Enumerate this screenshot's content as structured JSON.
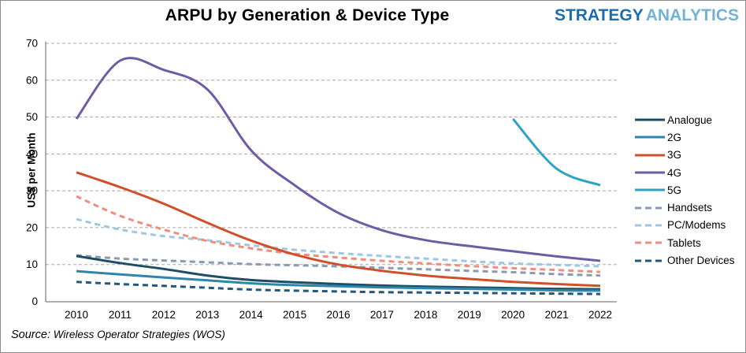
{
  "title": "ARPU by Generation & Device Type",
  "logo": {
    "part1": "STRATEGY",
    "part2": "ANALYTICS"
  },
  "source": {
    "prefix": "Source:",
    "text": "Wireless Operator Strategies (WOS)"
  },
  "chart_data": {
    "type": "line",
    "title": "ARPU by Generation & Device Type",
    "xlabel": "",
    "ylabel": "US$ per Month",
    "ylim": [
      0,
      70
    ],
    "yticks": [
      0,
      10,
      20,
      30,
      40,
      50,
      60,
      70
    ],
    "x": [
      2010,
      2011,
      2012,
      2013,
      2014,
      2015,
      2016,
      2017,
      2018,
      2019,
      2020,
      2021,
      2022
    ],
    "grid": "horizontal dashed gridlines",
    "legend_position": "right",
    "axis_color": "#808080",
    "gridline_color": "#a8a8a8",
    "series": [
      {
        "name": "Analogue",
        "color": "#1e4e66",
        "style": "solid",
        "values": [
          12.3,
          10.4,
          8.8,
          7.0,
          5.8,
          5.2,
          4.7,
          4.3,
          4.0,
          3.8,
          3.6,
          3.4,
          3.3
        ]
      },
      {
        "name": "2G",
        "color": "#2e86ab",
        "style": "solid",
        "values": [
          8.2,
          7.3,
          6.5,
          5.7,
          4.9,
          4.4,
          4.1,
          3.8,
          3.6,
          3.4,
          3.2,
          3.0,
          2.9
        ]
      },
      {
        "name": "3G",
        "color": "#d1502b",
        "style": "solid",
        "values": [
          35.0,
          31.0,
          26.5,
          21.3,
          16.5,
          12.7,
          10.0,
          8.3,
          7.0,
          6.1,
          5.3,
          4.7,
          4.2
        ]
      },
      {
        "name": "4G",
        "color": "#6e5ca4",
        "style": "solid",
        "values": [
          49.5,
          65.3,
          62.8,
          57.5,
          41.0,
          31.5,
          24.0,
          19.3,
          16.6,
          15.0,
          13.6,
          12.2,
          11.0
        ]
      },
      {
        "name": "5G",
        "color": "#2ea3c2",
        "style": "solid",
        "values": [
          null,
          null,
          null,
          null,
          null,
          null,
          null,
          null,
          null,
          null,
          49.5,
          36.0,
          31.5
        ]
      },
      {
        "name": "Handsets",
        "color": "#8a9ab0",
        "style": "dashed",
        "values": [
          12.5,
          11.6,
          11.1,
          10.6,
          10.1,
          9.8,
          9.5,
          9.1,
          8.7,
          8.3,
          7.9,
          7.4,
          7.0
        ]
      },
      {
        "name": "PC/Modems",
        "color": "#9fc8e0",
        "style": "dashed",
        "values": [
          22.3,
          19.5,
          17.7,
          16.6,
          15.2,
          14.0,
          13.1,
          12.3,
          11.6,
          10.9,
          10.3,
          9.9,
          9.5
        ]
      },
      {
        "name": "Tablets",
        "color": "#f08e7c",
        "style": "dashed",
        "values": [
          28.5,
          23.2,
          19.5,
          16.4,
          14.4,
          12.9,
          11.9,
          11.0,
          10.3,
          9.6,
          9.0,
          8.5,
          8.0
        ]
      },
      {
        "name": "Other Devices",
        "color": "#25567b",
        "style": "dashed",
        "values": [
          5.3,
          4.7,
          4.2,
          3.7,
          3.2,
          2.9,
          2.7,
          2.5,
          2.4,
          2.3,
          2.2,
          2.1,
          2.0
        ]
      }
    ]
  }
}
